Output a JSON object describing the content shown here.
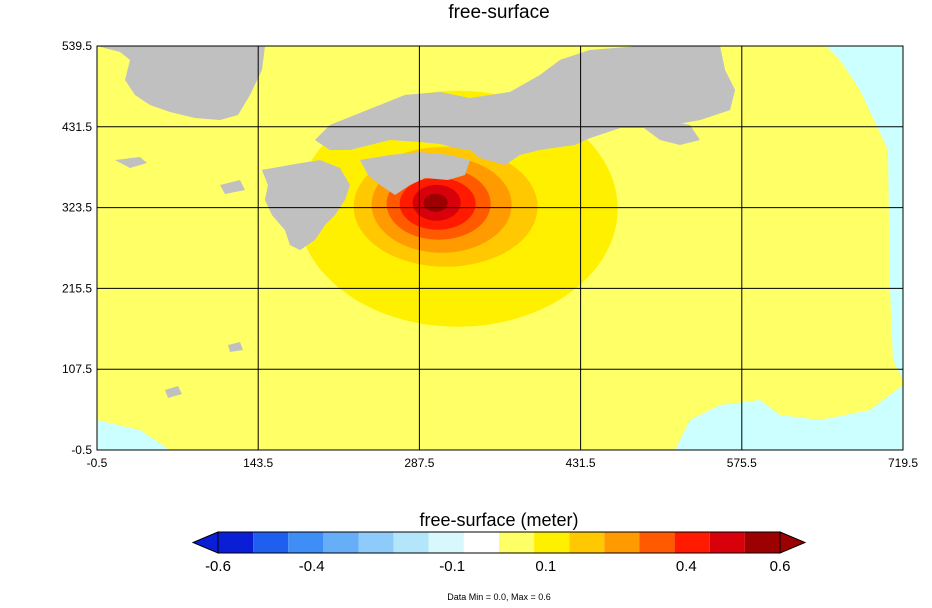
{
  "chart_data": {
    "type": "heatmap",
    "title": "free-surface",
    "x_ticks": [
      "-0.5",
      "143.5",
      "287.5",
      "431.5",
      "575.5",
      "719.5"
    ],
    "y_ticks": [
      "539.5",
      "431.5",
      "323.5",
      "215.5",
      "107.5",
      "-0.5"
    ],
    "xlim": [
      -0.5,
      719.5
    ],
    "ylim": [
      -0.5,
      539.5
    ],
    "grid": true,
    "peak": {
      "x": 302,
      "y": 330,
      "value": 0.6
    },
    "colorbar": {
      "title": "free-surface (meter)",
      "tick_labels": [
        "-0.6",
        "-0.4",
        "-0.1",
        "0.1",
        "0.4",
        "0.6"
      ],
      "tick_values": [
        -0.6,
        -0.4,
        -0.1,
        0.1,
        0.4,
        0.6
      ],
      "colors": [
        "#0a1ed6",
        "#1f5ff0",
        "#3f8ef7",
        "#67aef8",
        "#8fcbfa",
        "#b4e6fb",
        "#d7f8fd",
        "#ffffff",
        "#ffff66",
        "#fff000",
        "#ffc800",
        "#ff9a00",
        "#ff5a00",
        "#ff1a00",
        "#d8000a",
        "#9c0000"
      ],
      "under_color": "#0a1ed6",
      "over_color": "#9c0000",
      "footer": "Data Min = 0.0, Max = 0.6"
    },
    "colors": {
      "land": "#c0c0c0",
      "base_sea": "#ffff66",
      "zero_sea": "#ccffff",
      "contours": [
        "#fff000",
        "#ffc800",
        "#ff9a00",
        "#ff5a00",
        "#ff1a00",
        "#d8000a",
        "#9c0000"
      ]
    }
  }
}
